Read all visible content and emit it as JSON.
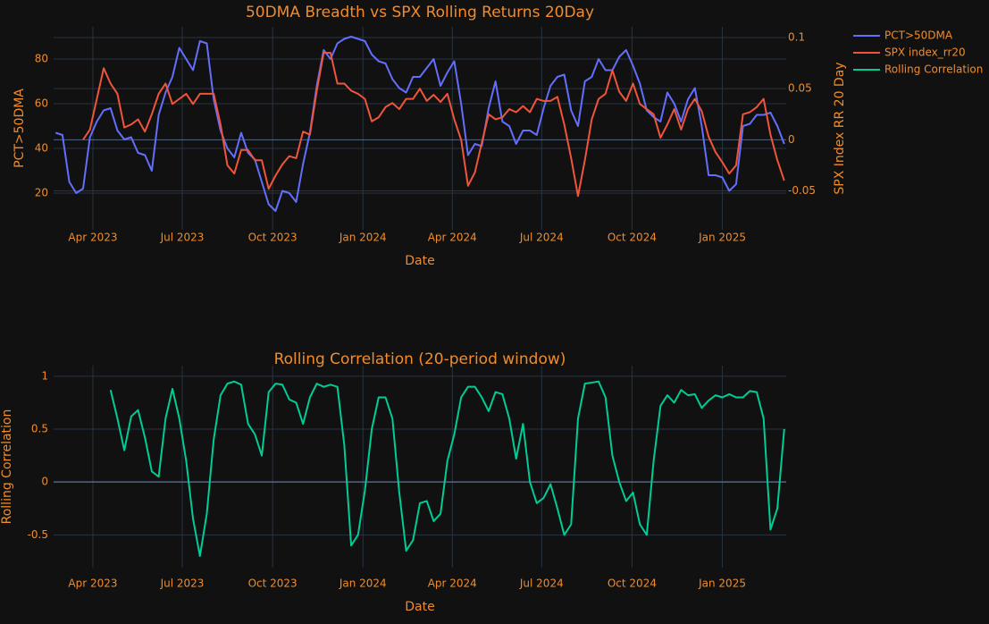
{
  "chart_data": [
    {
      "type": "line",
      "title": "50DMA Breadth vs SPX Rolling Returns 20Day",
      "xlabel": "Date",
      "ylabel": "PCT>50DMA",
      "y2label": "SPX Index RR 20 Day",
      "xlim": [
        "2023-02-20",
        "2025-03-07"
      ],
      "xticks": [
        {
          "value": "2023-04-01",
          "label": "Apr 2023"
        },
        {
          "value": "2023-07-01",
          "label": "Jul 2023"
        },
        {
          "value": "2023-10-01",
          "label": "Oct 2023"
        },
        {
          "value": "2024-01-01",
          "label": "Jan 2024"
        },
        {
          "value": "2024-04-01",
          "label": "Apr 2024"
        },
        {
          "value": "2024-07-01",
          "label": "Jul 2024"
        },
        {
          "value": "2024-10-01",
          "label": "Oct 2024"
        },
        {
          "value": "2025-01-01",
          "label": "Jan 2025"
        }
      ],
      "ylim": [
        3.6,
        94.4
      ],
      "yticks": [
        20,
        40,
        60,
        80
      ],
      "y2lim": [
        -0.088,
        0.1105
      ],
      "y2ticks": [
        -0.05,
        0,
        0.05,
        0.1
      ],
      "grid": true,
      "x": [
        "2023-02-22",
        "2023-03-01",
        "2023-03-08",
        "2023-03-15",
        "2023-03-22",
        "2023-03-29",
        "2023-04-05",
        "2023-04-12",
        "2023-04-19",
        "2023-04-26",
        "2023-05-03",
        "2023-05-10",
        "2023-05-17",
        "2023-05-24",
        "2023-05-31",
        "2023-06-07",
        "2023-06-14",
        "2023-06-21",
        "2023-06-28",
        "2023-07-05",
        "2023-07-12",
        "2023-07-19",
        "2023-07-26",
        "2023-08-02",
        "2023-08-09",
        "2023-08-16",
        "2023-08-23",
        "2023-08-30",
        "2023-09-06",
        "2023-09-13",
        "2023-09-20",
        "2023-09-27",
        "2023-10-04",
        "2023-10-11",
        "2023-10-18",
        "2023-10-25",
        "2023-11-01",
        "2023-11-08",
        "2023-11-15",
        "2023-11-22",
        "2023-11-29",
        "2023-12-06",
        "2023-12-13",
        "2023-12-20",
        "2023-12-27",
        "2024-01-03",
        "2024-01-10",
        "2024-01-17",
        "2024-01-24",
        "2024-01-31",
        "2024-02-07",
        "2024-02-14",
        "2024-02-21",
        "2024-02-28",
        "2024-03-06",
        "2024-03-13",
        "2024-03-20",
        "2024-03-27",
        "2024-04-03",
        "2024-04-10",
        "2024-04-17",
        "2024-04-24",
        "2024-05-01",
        "2024-05-08",
        "2024-05-15",
        "2024-05-22",
        "2024-05-29",
        "2024-06-05",
        "2024-06-12",
        "2024-06-19",
        "2024-06-26",
        "2024-07-03",
        "2024-07-10",
        "2024-07-17",
        "2024-07-24",
        "2024-07-31",
        "2024-08-07",
        "2024-08-14",
        "2024-08-21",
        "2024-08-28",
        "2024-09-04",
        "2024-09-11",
        "2024-09-18",
        "2024-09-25",
        "2024-10-02",
        "2024-10-09",
        "2024-10-16",
        "2024-10-23",
        "2024-10-30",
        "2024-11-06",
        "2024-11-13",
        "2024-11-20",
        "2024-11-27",
        "2024-12-04",
        "2024-12-11",
        "2024-12-18",
        "2024-12-25",
        "2025-01-01",
        "2025-01-08",
        "2025-01-15",
        "2025-01-22",
        "2025-01-29",
        "2025-02-05",
        "2025-02-12",
        "2025-02-19",
        "2025-02-26",
        "2025-03-05"
      ],
      "series": [
        {
          "name": "PCT>50DMA",
          "color": "#636efa",
          "values": [
            47,
            46,
            25,
            20,
            22,
            45,
            52,
            57,
            58,
            48,
            44,
            45,
            38,
            37,
            30,
            55,
            65,
            72,
            85,
            80,
            75,
            88,
            87,
            62,
            48,
            40,
            36,
            47,
            38,
            35,
            25,
            15,
            12,
            21,
            20,
            16,
            33,
            47,
            68,
            84,
            80,
            87,
            89,
            90,
            89,
            88,
            82,
            79,
            78,
            71,
            67,
            65,
            72,
            72,
            76,
            80,
            68,
            74,
            79,
            60,
            37,
            42,
            41,
            58,
            70,
            52,
            50,
            42,
            48,
            48,
            46,
            58,
            68,
            72,
            73,
            57,
            50,
            70,
            72,
            80,
            75,
            75,
            81,
            84,
            77,
            69,
            57,
            54,
            52,
            65,
            60,
            52,
            62,
            67,
            50,
            28,
            28,
            27,
            21,
            24,
            50,
            51,
            55,
            55,
            56,
            50,
            42
          ]
        },
        {
          "name": "SPX index_rr20",
          "color": "#ef553b",
          "axis": "y2",
          "values": [
            null,
            null,
            null,
            null,
            0.0,
            0.01,
            0.04,
            0.07,
            0.055,
            0.045,
            0.012,
            0.015,
            0.02,
            0.008,
            0.025,
            0.045,
            0.055,
            0.035,
            0.04,
            0.045,
            0.035,
            0.045,
            0.045,
            0.045,
            0.015,
            -0.025,
            -0.033,
            -0.01,
            -0.01,
            -0.02,
            -0.02,
            -0.048,
            -0.035,
            -0.024,
            -0.016,
            -0.018,
            0.008,
            0.005,
            0.048,
            0.085,
            0.085,
            0.055,
            0.055,
            0.048,
            0.045,
            0.04,
            0.018,
            0.022,
            0.032,
            0.036,
            0.03,
            0.04,
            0.04,
            0.05,
            0.038,
            0.044,
            0.037,
            0.045,
            0.02,
            0.0,
            -0.045,
            -0.032,
            -0.003,
            0.025,
            0.02,
            0.022,
            0.03,
            0.027,
            0.033,
            0.027,
            0.04,
            0.038,
            0.038,
            0.042,
            0.015,
            -0.018,
            -0.055,
            -0.02,
            0.02,
            0.04,
            0.045,
            0.068,
            0.047,
            0.038,
            0.055,
            0.035,
            0.03,
            0.025,
            0.002,
            0.015,
            0.03,
            0.01,
            0.03,
            0.04,
            0.028,
            0.003,
            -0.012,
            -0.022,
            -0.033,
            -0.025,
            0.025,
            0.027,
            0.032,
            0.04,
            0.005,
            -0.02,
            -0.04
          ]
        }
      ]
    },
    {
      "type": "line",
      "title": "Rolling Correlation (20-period window)",
      "xlabel": "Date",
      "ylabel": "Rolling Correlation",
      "xlim": [
        "2023-02-20",
        "2025-03-07"
      ],
      "xticks": [
        {
          "value": "2023-04-01",
          "label": "Apr 2023"
        },
        {
          "value": "2023-07-01",
          "label": "Jul 2023"
        },
        {
          "value": "2023-10-01",
          "label": "Oct 2023"
        },
        {
          "value": "2024-01-01",
          "label": "Jan 2024"
        },
        {
          "value": "2024-04-01",
          "label": "Apr 2024"
        },
        {
          "value": "2024-07-01",
          "label": "Jul 2024"
        },
        {
          "value": "2024-10-01",
          "label": "Oct 2024"
        },
        {
          "value": "2025-01-01",
          "label": "Jan 2025"
        }
      ],
      "ylim": [
        -0.81,
        1.1
      ],
      "yticks": [
        -0.5,
        0,
        0.5,
        1
      ],
      "grid": true,
      "x": [
        "2023-04-19",
        "2023-04-26",
        "2023-05-03",
        "2023-05-10",
        "2023-05-17",
        "2023-05-24",
        "2023-05-31",
        "2023-06-07",
        "2023-06-14",
        "2023-06-21",
        "2023-06-28",
        "2023-07-05",
        "2023-07-12",
        "2023-07-19",
        "2023-07-26",
        "2023-08-02",
        "2023-08-09",
        "2023-08-16",
        "2023-08-23",
        "2023-08-30",
        "2023-09-06",
        "2023-09-13",
        "2023-09-20",
        "2023-09-27",
        "2023-10-04",
        "2023-10-11",
        "2023-10-18",
        "2023-10-25",
        "2023-11-01",
        "2023-11-08",
        "2023-11-15",
        "2023-11-22",
        "2023-11-29",
        "2023-12-06",
        "2023-12-13",
        "2023-12-20",
        "2023-12-27",
        "2024-01-03",
        "2024-01-10",
        "2024-01-17",
        "2024-01-24",
        "2024-01-31",
        "2024-02-07",
        "2024-02-14",
        "2024-02-21",
        "2024-02-28",
        "2024-03-06",
        "2024-03-13",
        "2024-03-20",
        "2024-03-27",
        "2024-04-03",
        "2024-04-10",
        "2024-04-17",
        "2024-04-24",
        "2024-05-01",
        "2024-05-08",
        "2024-05-15",
        "2024-05-22",
        "2024-05-29",
        "2024-06-05",
        "2024-06-12",
        "2024-06-19",
        "2024-06-26",
        "2024-07-03",
        "2024-07-10",
        "2024-07-17",
        "2024-07-24",
        "2024-07-31",
        "2024-08-07",
        "2024-08-14",
        "2024-08-21",
        "2024-08-28",
        "2024-09-04",
        "2024-09-11",
        "2024-09-18",
        "2024-09-25",
        "2024-10-02",
        "2024-10-09",
        "2024-10-16",
        "2024-10-23",
        "2024-10-30",
        "2024-11-06",
        "2024-11-13",
        "2024-11-20",
        "2024-11-27",
        "2024-12-04",
        "2024-12-11",
        "2024-12-18",
        "2024-12-25",
        "2025-01-01",
        "2025-01-08",
        "2025-01-15",
        "2025-01-22",
        "2025-01-29",
        "2025-02-05",
        "2025-02-12",
        "2025-02-19",
        "2025-02-26",
        "2025-03-05"
      ],
      "series": [
        {
          "name": "Rolling Correlation",
          "color": "#00cc96",
          "values": [
            0.87,
            0.6,
            0.3,
            0.62,
            0.68,
            0.42,
            0.1,
            0.05,
            0.6,
            0.88,
            0.6,
            0.2,
            -0.35,
            -0.7,
            -0.3,
            0.4,
            0.82,
            0.93,
            0.95,
            0.92,
            0.55,
            0.45,
            0.25,
            0.85,
            0.93,
            0.92,
            0.78,
            0.75,
            0.55,
            0.8,
            0.93,
            0.9,
            0.92,
            0.9,
            0.35,
            -0.6,
            -0.5,
            -0.08,
            0.5,
            0.8,
            0.8,
            0.6,
            -0.1,
            -0.65,
            -0.55,
            -0.2,
            -0.18,
            -0.37,
            -0.3,
            0.2,
            0.45,
            0.8,
            0.9,
            0.9,
            0.8,
            0.67,
            0.85,
            0.83,
            0.6,
            0.22,
            0.55,
            0.0,
            -0.2,
            -0.15,
            -0.02,
            -0.25,
            -0.5,
            -0.4,
            0.6,
            0.93,
            0.94,
            0.95,
            0.8,
            0.25,
            0.0,
            -0.18,
            -0.1,
            -0.4,
            -0.5,
            0.2,
            0.72,
            0.82,
            0.75,
            0.87,
            0.82,
            0.83,
            0.7,
            0.77,
            0.82,
            0.8,
            0.83,
            0.8,
            0.8,
            0.86,
            0.85,
            0.6,
            -0.45,
            -0.25,
            0.5
          ]
        }
      ]
    }
  ]
}
